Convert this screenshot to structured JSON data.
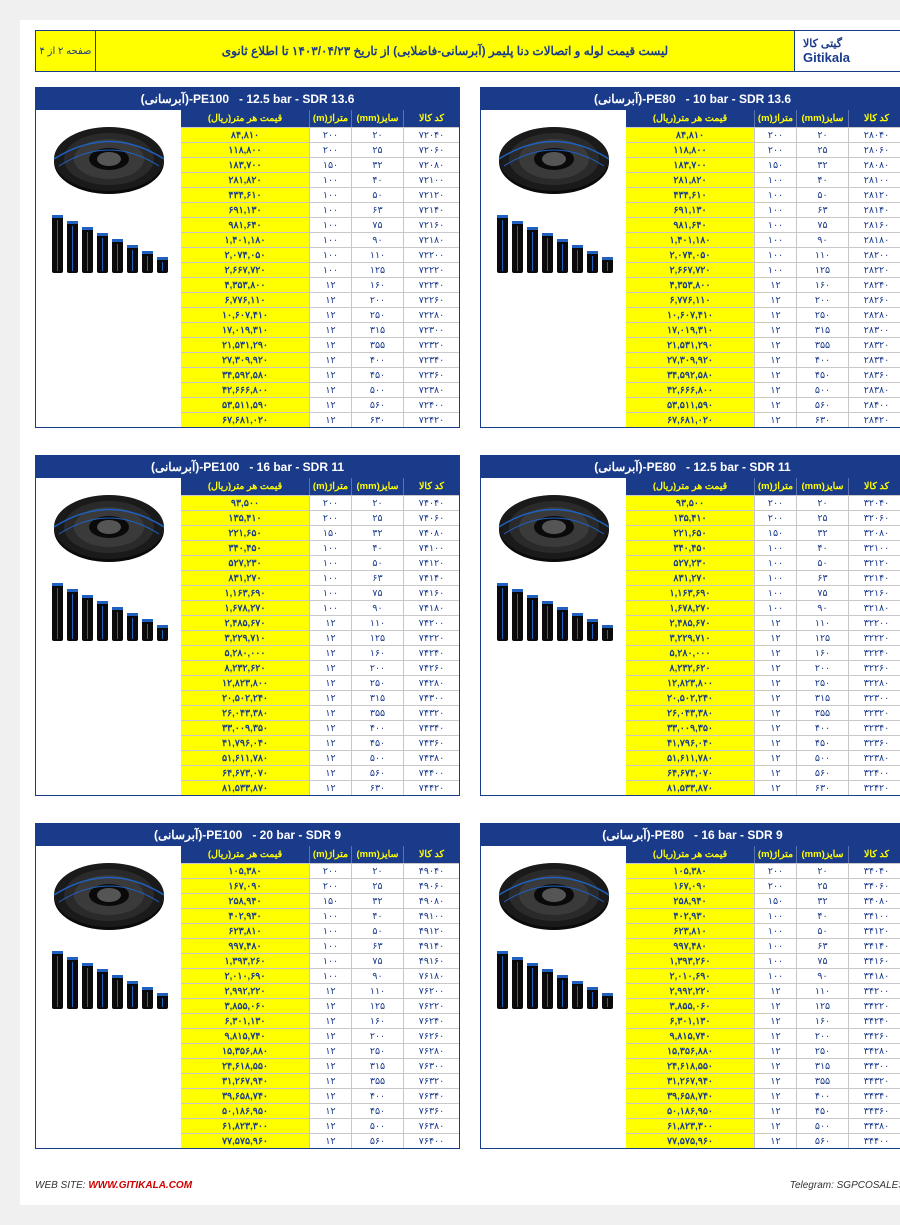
{
  "colors": {
    "primary": "#1a3a8a",
    "yellow": "#ffff00",
    "grid": "#c8c8c8"
  },
  "header": {
    "brand_fa": "گیتی کالا",
    "brand_en": "Gitikala",
    "title": "لیست قیمت لوله و اتصالات دنا پلیمر (آبرسانی-فاضلابی) از تاریخ ۱۴۰۳/۰۴/۲۳ تا اطلاع ثانوی",
    "page_indicator": "صفحه ۲ از ۴"
  },
  "columns": {
    "code": "کد کالا",
    "size": "سایز(mm)",
    "meter": "متراژ(m)",
    "price": "قیمت هر متر(ریال)"
  },
  "footer": {
    "website_label": "WEB SITE:",
    "website_url": "WWW.GITIKALA.COM",
    "telegram": "Telegram: SGPCOSALES"
  },
  "tables": [
    {
      "title_rtl": "(آبرسانی)-PE100",
      "title_spec": "- 12.5 bar - SDR 13.6",
      "codes_base": 72040,
      "rows": [
        {
          "code": "۷۲۰۴۰",
          "size": "۲۰",
          "meter": "۲۰۰",
          "price": "۸۴,۸۱۰"
        },
        {
          "code": "۷۲۰۶۰",
          "size": "۲۵",
          "meter": "۲۰۰",
          "price": "۱۱۸,۸۰۰"
        },
        {
          "code": "۷۲۰۸۰",
          "size": "۳۲",
          "meter": "۱۵۰",
          "price": "۱۸۳,۷۰۰"
        },
        {
          "code": "۷۲۱۰۰",
          "size": "۴۰",
          "meter": "۱۰۰",
          "price": "۲۸۱,۸۲۰"
        },
        {
          "code": "۷۲۱۲۰",
          "size": "۵۰",
          "meter": "۱۰۰",
          "price": "۴۳۴,۶۱۰"
        },
        {
          "code": "۷۲۱۴۰",
          "size": "۶۳",
          "meter": "۱۰۰",
          "price": "۶۹۱,۱۳۰"
        },
        {
          "code": "۷۲۱۶۰",
          "size": "۷۵",
          "meter": "۱۰۰",
          "price": "۹۸۱,۶۴۰"
        },
        {
          "code": "۷۲۱۸۰",
          "size": "۹۰",
          "meter": "۱۰۰",
          "price": "۱,۴۰۱,۱۸۰"
        },
        {
          "code": "۷۲۲۰۰",
          "size": "۱۱۰",
          "meter": "۱۰۰",
          "price": "۲,۰۷۴,۰۵۰"
        },
        {
          "code": "۷۲۲۲۰",
          "size": "۱۲۵",
          "meter": "۱۰۰",
          "price": "۲,۶۶۷,۷۲۰"
        },
        {
          "code": "۷۲۲۴۰",
          "size": "۱۶۰",
          "meter": "۱۲",
          "price": "۴,۳۵۳,۸۰۰"
        },
        {
          "code": "۷۲۲۶۰",
          "size": "۲۰۰",
          "meter": "۱۲",
          "price": "۶,۷۷۶,۱۱۰"
        },
        {
          "code": "۷۲۲۸۰",
          "size": "۲۵۰",
          "meter": "۱۲",
          "price": "۱۰,۶۰۷,۴۱۰"
        },
        {
          "code": "۷۲۳۰۰",
          "size": "۳۱۵",
          "meter": "۱۲",
          "price": "۱۷,۰۱۹,۳۱۰"
        },
        {
          "code": "۷۲۳۲۰",
          "size": "۳۵۵",
          "meter": "۱۲",
          "price": "۲۱,۵۳۱,۲۹۰"
        },
        {
          "code": "۷۲۳۴۰",
          "size": "۴۰۰",
          "meter": "۱۲",
          "price": "۲۷,۳۰۹,۹۲۰"
        },
        {
          "code": "۷۲۳۶۰",
          "size": "۴۵۰",
          "meter": "۱۲",
          "price": "۳۴,۵۹۲,۵۸۰"
        },
        {
          "code": "۷۲۳۸۰",
          "size": "۵۰۰",
          "meter": "۱۲",
          "price": "۴۲,۶۶۶,۸۰۰"
        },
        {
          "code": "۷۲۴۰۰",
          "size": "۵۶۰",
          "meter": "۱۲",
          "price": "۵۳,۵۱۱,۵۹۰"
        },
        {
          "code": "۷۲۴۲۰",
          "size": "۶۳۰",
          "meter": "۱۲",
          "price": "۶۷,۶۸۱,۰۲۰"
        }
      ]
    },
    {
      "title_rtl": "(آبرسانی)-PE80",
      "title_spec": "- 10 bar - SDR 13.6",
      "rows": [
        {
          "code": "۲۸۰۴۰",
          "size": "۲۰",
          "meter": "۲۰۰",
          "price": "۸۴,۸۱۰"
        },
        {
          "code": "۲۸۰۶۰",
          "size": "۲۵",
          "meter": "۲۰۰",
          "price": "۱۱۸,۸۰۰"
        },
        {
          "code": "۲۸۰۸۰",
          "size": "۳۲",
          "meter": "۱۵۰",
          "price": "۱۸۳,۷۰۰"
        },
        {
          "code": "۲۸۱۰۰",
          "size": "۴۰",
          "meter": "۱۰۰",
          "price": "۲۸۱,۸۲۰"
        },
        {
          "code": "۲۸۱۲۰",
          "size": "۵۰",
          "meter": "۱۰۰",
          "price": "۴۳۴,۶۱۰"
        },
        {
          "code": "۲۸۱۴۰",
          "size": "۶۳",
          "meter": "۱۰۰",
          "price": "۶۹۱,۱۳۰"
        },
        {
          "code": "۲۸۱۶۰",
          "size": "۷۵",
          "meter": "۱۰۰",
          "price": "۹۸۱,۶۴۰"
        },
        {
          "code": "۲۸۱۸۰",
          "size": "۹۰",
          "meter": "۱۰۰",
          "price": "۱,۴۰۱,۱۸۰"
        },
        {
          "code": "۲۸۲۰۰",
          "size": "۱۱۰",
          "meter": "۱۰۰",
          "price": "۲,۰۷۴,۰۵۰"
        },
        {
          "code": "۲۸۲۲۰",
          "size": "۱۲۵",
          "meter": "۱۰۰",
          "price": "۲,۶۶۷,۷۲۰"
        },
        {
          "code": "۲۸۲۴۰",
          "size": "۱۶۰",
          "meter": "۱۲",
          "price": "۴,۳۵۳,۸۰۰"
        },
        {
          "code": "۲۸۲۶۰",
          "size": "۲۰۰",
          "meter": "۱۲",
          "price": "۶,۷۷۶,۱۱۰"
        },
        {
          "code": "۲۸۲۸۰",
          "size": "۲۵۰",
          "meter": "۱۲",
          "price": "۱۰,۶۰۷,۴۱۰"
        },
        {
          "code": "۲۸۳۰۰",
          "size": "۳۱۵",
          "meter": "۱۲",
          "price": "۱۷,۰۱۹,۳۱۰"
        },
        {
          "code": "۲۸۳۲۰",
          "size": "۳۵۵",
          "meter": "۱۲",
          "price": "۲۱,۵۳۱,۲۹۰"
        },
        {
          "code": "۲۸۳۴۰",
          "size": "۴۰۰",
          "meter": "۱۲",
          "price": "۲۷,۳۰۹,۹۲۰"
        },
        {
          "code": "۲۸۳۶۰",
          "size": "۴۵۰",
          "meter": "۱۲",
          "price": "۳۴,۵۹۲,۵۸۰"
        },
        {
          "code": "۲۸۳۸۰",
          "size": "۵۰۰",
          "meter": "۱۲",
          "price": "۴۲,۶۶۶,۸۰۰"
        },
        {
          "code": "۲۸۴۰۰",
          "size": "۵۶۰",
          "meter": "۱۲",
          "price": "۵۳,۵۱۱,۵۹۰"
        },
        {
          "code": "۲۸۴۲۰",
          "size": "۶۳۰",
          "meter": "۱۲",
          "price": "۶۷,۶۸۱,۰۲۰"
        }
      ]
    },
    {
      "title_rtl": "(آبرسانی)-PE100",
      "title_spec": "- 16 bar - SDR 11",
      "rows": [
        {
          "code": "۷۴۰۴۰",
          "size": "۲۰",
          "meter": "۲۰۰",
          "price": "۹۳,۵۰۰"
        },
        {
          "code": "۷۴۰۶۰",
          "size": "۲۵",
          "meter": "۲۰۰",
          "price": "۱۳۵,۴۱۰"
        },
        {
          "code": "۷۴۰۸۰",
          "size": "۳۲",
          "meter": "۱۵۰",
          "price": "۲۲۱,۶۵۰"
        },
        {
          "code": "۷۴۱۰۰",
          "size": "۴۰",
          "meter": "۱۰۰",
          "price": "۳۴۰,۴۵۰"
        },
        {
          "code": "۷۴۱۲۰",
          "size": "۵۰",
          "meter": "۱۰۰",
          "price": "۵۲۷,۲۳۰"
        },
        {
          "code": "۷۴۱۴۰",
          "size": "۶۳",
          "meter": "۱۰۰",
          "price": "۸۳۱,۲۷۰"
        },
        {
          "code": "۷۴۱۶۰",
          "size": "۷۵",
          "meter": "۱۰۰",
          "price": "۱,۱۶۳,۶۹۰"
        },
        {
          "code": "۷۴۱۸۰",
          "size": "۹۰",
          "meter": "۱۰۰",
          "price": "۱,۶۷۸,۲۷۰"
        },
        {
          "code": "۷۴۲۰۰",
          "size": "۱۱۰",
          "meter": "۱۲",
          "price": "۲,۴۸۵,۶۷۰"
        },
        {
          "code": "۷۴۲۲۰",
          "size": "۱۲۵",
          "meter": "۱۲",
          "price": "۳,۲۲۹,۷۱۰"
        },
        {
          "code": "۷۴۲۴۰",
          "size": "۱۶۰",
          "meter": "۱۲",
          "price": "۵,۲۸۰,۰۰۰"
        },
        {
          "code": "۷۴۲۶۰",
          "size": "۲۰۰",
          "meter": "۱۲",
          "price": "۸,۲۳۲,۶۲۰"
        },
        {
          "code": "۷۴۲۸۰",
          "size": "۲۵۰",
          "meter": "۱۲",
          "price": "۱۲,۸۲۳,۸۰۰"
        },
        {
          "code": "۷۴۳۰۰",
          "size": "۳۱۵",
          "meter": "۱۲",
          "price": "۲۰,۵۰۲,۲۴۰"
        },
        {
          "code": "۷۴۳۲۰",
          "size": "۳۵۵",
          "meter": "۱۲",
          "price": "۲۶,۰۴۳,۳۸۰"
        },
        {
          "code": "۷۴۳۴۰",
          "size": "۴۰۰",
          "meter": "۱۲",
          "price": "۳۳,۰۰۹,۳۵۰"
        },
        {
          "code": "۷۴۳۶۰",
          "size": "۴۵۰",
          "meter": "۱۲",
          "price": "۴۱,۷۹۶,۰۴۰"
        },
        {
          "code": "۷۴۳۸۰",
          "size": "۵۰۰",
          "meter": "۱۲",
          "price": "۵۱,۶۱۱,۷۸۰"
        },
        {
          "code": "۷۴۴۰۰",
          "size": "۵۶۰",
          "meter": "۱۲",
          "price": "۶۴,۶۷۳,۰۷۰"
        },
        {
          "code": "۷۴۴۲۰",
          "size": "۶۳۰",
          "meter": "۱۲",
          "price": "۸۱,۵۳۳,۸۷۰"
        }
      ]
    },
    {
      "title_rtl": "(آبرسانی)-PE80",
      "title_spec": "- 12.5 bar - SDR 11",
      "rows": [
        {
          "code": "۳۲۰۴۰",
          "size": "۲۰",
          "meter": "۲۰۰",
          "price": "۹۳,۵۰۰"
        },
        {
          "code": "۳۲۰۶۰",
          "size": "۲۵",
          "meter": "۲۰۰",
          "price": "۱۳۵,۴۱۰"
        },
        {
          "code": "۳۲۰۸۰",
          "size": "۳۲",
          "meter": "۱۵۰",
          "price": "۲۲۱,۶۵۰"
        },
        {
          "code": "۳۲۱۰۰",
          "size": "۴۰",
          "meter": "۱۰۰",
          "price": "۳۴۰,۴۵۰"
        },
        {
          "code": "۳۲۱۲۰",
          "size": "۵۰",
          "meter": "۱۰۰",
          "price": "۵۲۷,۲۳۰"
        },
        {
          "code": "۳۲۱۴۰",
          "size": "۶۳",
          "meter": "۱۰۰",
          "price": "۸۳۱,۲۷۰"
        },
        {
          "code": "۳۲۱۶۰",
          "size": "۷۵",
          "meter": "۱۰۰",
          "price": "۱,۱۶۳,۶۹۰"
        },
        {
          "code": "۳۲۱۸۰",
          "size": "۹۰",
          "meter": "۱۰۰",
          "price": "۱,۶۷۸,۲۷۰"
        },
        {
          "code": "۳۲۲۰۰",
          "size": "۱۱۰",
          "meter": "۱۲",
          "price": "۲,۴۸۵,۶۷۰"
        },
        {
          "code": "۳۲۲۲۰",
          "size": "۱۲۵",
          "meter": "۱۲",
          "price": "۳,۲۲۹,۷۱۰"
        },
        {
          "code": "۳۲۲۴۰",
          "size": "۱۶۰",
          "meter": "۱۲",
          "price": "۵,۲۸۰,۰۰۰"
        },
        {
          "code": "۳۲۲۶۰",
          "size": "۲۰۰",
          "meter": "۱۲",
          "price": "۸,۲۳۲,۶۲۰"
        },
        {
          "code": "۳۲۲۸۰",
          "size": "۲۵۰",
          "meter": "۱۲",
          "price": "۱۲,۸۲۳,۸۰۰"
        },
        {
          "code": "۳۲۳۰۰",
          "size": "۳۱۵",
          "meter": "۱۲",
          "price": "۲۰,۵۰۲,۲۴۰"
        },
        {
          "code": "۳۲۳۲۰",
          "size": "۳۵۵",
          "meter": "۱۲",
          "price": "۲۶,۰۴۳,۳۸۰"
        },
        {
          "code": "۳۲۳۴۰",
          "size": "۴۰۰",
          "meter": "۱۲",
          "price": "۳۳,۰۰۹,۳۵۰"
        },
        {
          "code": "۳۲۳۶۰",
          "size": "۴۵۰",
          "meter": "۱۲",
          "price": "۴۱,۷۹۶,۰۴۰"
        },
        {
          "code": "۳۲۳۸۰",
          "size": "۵۰۰",
          "meter": "۱۲",
          "price": "۵۱,۶۱۱,۷۸۰"
        },
        {
          "code": "۳۲۴۰۰",
          "size": "۵۶۰",
          "meter": "۱۲",
          "price": "۶۴,۶۷۳,۰۷۰"
        },
        {
          "code": "۳۲۴۲۰",
          "size": "۶۳۰",
          "meter": "۱۲",
          "price": "۸۱,۵۳۳,۸۷۰"
        }
      ]
    },
    {
      "title_rtl": "(آبرسانی)-PE100",
      "title_spec": "- 20 bar - SDR 9",
      "rows": [
        {
          "code": "۴۹۰۴۰",
          "size": "۲۰",
          "meter": "۲۰۰",
          "price": "۱۰۵,۳۸۰"
        },
        {
          "code": "۴۹۰۶۰",
          "size": "۲۵",
          "meter": "۲۰۰",
          "price": "۱۶۷,۰۹۰"
        },
        {
          "code": "۴۹۰۸۰",
          "size": "۳۲",
          "meter": "۱۵۰",
          "price": "۲۵۸,۹۴۰"
        },
        {
          "code": "۴۹۱۰۰",
          "size": "۴۰",
          "meter": "۱۰۰",
          "price": "۴۰۲,۹۳۰"
        },
        {
          "code": "۴۹۱۲۰",
          "size": "۵۰",
          "meter": "۱۰۰",
          "price": "۶۲۳,۸۱۰"
        },
        {
          "code": "۴۹۱۴۰",
          "size": "۶۳",
          "meter": "۱۰۰",
          "price": "۹۹۷,۴۸۰"
        },
        {
          "code": "۴۹۱۶۰",
          "size": "۷۵",
          "meter": "۱۰۰",
          "price": "۱,۳۹۳,۲۶۰"
        },
        {
          "code": "۷۶۱۸۰",
          "size": "۹۰",
          "meter": "۱۰۰",
          "price": "۲,۰۱۰,۶۹۰"
        },
        {
          "code": "۷۶۲۰۰",
          "size": "۱۱۰",
          "meter": "۱۲",
          "price": "۲,۹۹۲,۲۲۰"
        },
        {
          "code": "۷۶۲۲۰",
          "size": "۱۲۵",
          "meter": "۱۲",
          "price": "۳,۸۵۵,۰۶۰"
        },
        {
          "code": "۷۶۲۴۰",
          "size": "۱۶۰",
          "meter": "۱۲",
          "price": "۶,۳۰۱,۱۳۰"
        },
        {
          "code": "۷۶۲۶۰",
          "size": "۲۰۰",
          "meter": "۱۲",
          "price": "۹,۸۱۵,۷۴۰"
        },
        {
          "code": "۷۶۲۸۰",
          "size": "۲۵۰",
          "meter": "۱۲",
          "price": "۱۵,۳۵۶,۸۸۰"
        },
        {
          "code": "۷۶۳۰۰",
          "size": "۳۱۵",
          "meter": "۱۲",
          "price": "۲۴,۶۱۸,۵۵۰"
        },
        {
          "code": "۷۶۳۲۰",
          "size": "۳۵۵",
          "meter": "۱۲",
          "price": "۳۱,۲۶۷,۹۴۰"
        },
        {
          "code": "۷۶۳۴۰",
          "size": "۴۰۰",
          "meter": "۱۲",
          "price": "۳۹,۶۵۸,۷۴۰"
        },
        {
          "code": "۷۶۳۶۰",
          "size": "۴۵۰",
          "meter": "۱۲",
          "price": "۵۰,۱۸۶,۹۵۰"
        },
        {
          "code": "۷۶۳۸۰",
          "size": "۵۰۰",
          "meter": "۱۲",
          "price": "۶۱,۸۲۳,۳۰۰"
        },
        {
          "code": "۷۶۴۰۰",
          "size": "۵۶۰",
          "meter": "۱۲",
          "price": "۷۷,۵۷۵,۹۶۰"
        }
      ]
    },
    {
      "title_rtl": "(آبرسانی)-PE80",
      "title_spec": "- 16 bar - SDR 9",
      "rows": [
        {
          "code": "۳۴۰۴۰",
          "size": "۲۰",
          "meter": "۲۰۰",
          "price": "۱۰۵,۳۸۰"
        },
        {
          "code": "۳۴۰۶۰",
          "size": "۲۵",
          "meter": "۲۰۰",
          "price": "۱۶۷,۰۹۰"
        },
        {
          "code": "۳۴۰۸۰",
          "size": "۳۲",
          "meter": "۱۵۰",
          "price": "۲۵۸,۹۴۰"
        },
        {
          "code": "۳۴۱۰۰",
          "size": "۴۰",
          "meter": "۱۰۰",
          "price": "۴۰۲,۹۳۰"
        },
        {
          "code": "۳۴۱۲۰",
          "size": "۵۰",
          "meter": "۱۰۰",
          "price": "۶۲۳,۸۱۰"
        },
        {
          "code": "۳۴۱۴۰",
          "size": "۶۳",
          "meter": "۱۰۰",
          "price": "۹۹۷,۴۸۰"
        },
        {
          "code": "۳۴۱۶۰",
          "size": "۷۵",
          "meter": "۱۰۰",
          "price": "۱,۳۹۳,۲۶۰"
        },
        {
          "code": "۳۴۱۸۰",
          "size": "۹۰",
          "meter": "۱۰۰",
          "price": "۲,۰۱۰,۶۹۰"
        },
        {
          "code": "۳۴۲۰۰",
          "size": "۱۱۰",
          "meter": "۱۲",
          "price": "۲,۹۹۲,۲۲۰"
        },
        {
          "code": "۳۴۲۲۰",
          "size": "۱۲۵",
          "meter": "۱۲",
          "price": "۳,۸۵۵,۰۶۰"
        },
        {
          "code": "۳۴۲۴۰",
          "size": "۱۶۰",
          "meter": "۱۲",
          "price": "۶,۳۰۱,۱۳۰"
        },
        {
          "code": "۳۴۲۶۰",
          "size": "۲۰۰",
          "meter": "۱۲",
          "price": "۹,۸۱۵,۷۴۰"
        },
        {
          "code": "۳۴۲۸۰",
          "size": "۲۵۰",
          "meter": "۱۲",
          "price": "۱۵,۳۵۶,۸۸۰"
        },
        {
          "code": "۳۴۳۰۰",
          "size": "۳۱۵",
          "meter": "۱۲",
          "price": "۲۴,۶۱۸,۵۵۰"
        },
        {
          "code": "۳۴۳۲۰",
          "size": "۳۵۵",
          "meter": "۱۲",
          "price": "۳۱,۲۶۷,۹۴۰"
        },
        {
          "code": "۳۴۳۴۰",
          "size": "۴۰۰",
          "meter": "۱۲",
          "price": "۳۹,۶۵۸,۷۴۰"
        },
        {
          "code": "۳۴۳۶۰",
          "size": "۴۵۰",
          "meter": "۱۲",
          "price": "۵۰,۱۸۶,۹۵۰"
        },
        {
          "code": "۳۴۳۸۰",
          "size": "۵۰۰",
          "meter": "۱۲",
          "price": "۶۱,۸۲۳,۳۰۰"
        },
        {
          "code": "۳۴۴۰۰",
          "size": "۵۶۰",
          "meter": "۱۲",
          "price": "۷۷,۵۷۵,۹۶۰"
        }
      ]
    }
  ]
}
